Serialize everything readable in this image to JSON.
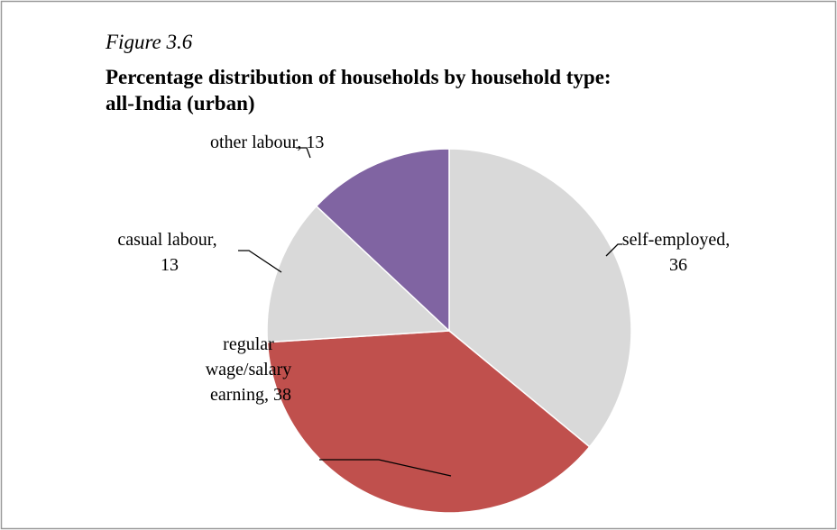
{
  "chart_data": {
    "type": "pie",
    "figure_label": "Figure 3.6",
    "title": "Percentage distribution of households by household type: all-India (urban)",
    "categories": [
      "self-employed",
      "regular wage/salary earning",
      "casual labour",
      "other labour"
    ],
    "values": [
      36,
      38,
      13,
      13
    ],
    "value_labels": [
      "self-employed, 36",
      "regular wage/salary earning, 38",
      "casual labour, 13",
      "other labour, 13"
    ],
    "colors": [
      "#d9d9d9",
      "#c0504d",
      "#d9d9d9",
      "#8064a2"
    ]
  }
}
